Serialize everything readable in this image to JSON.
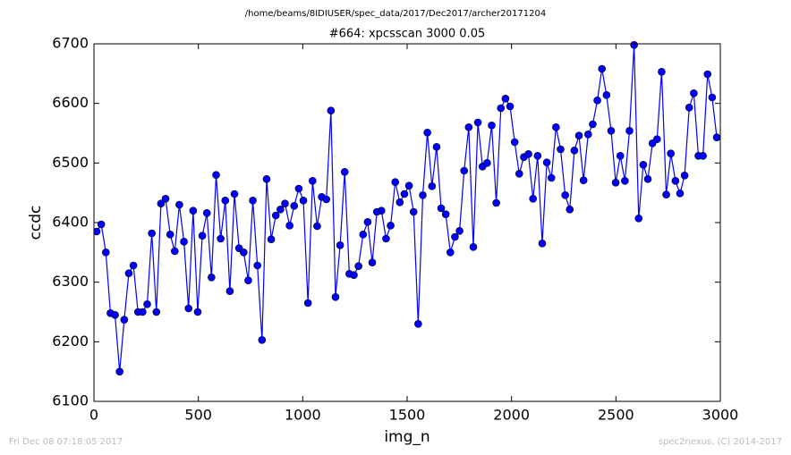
{
  "chart_data": {
    "type": "line",
    "suptitle": "/home/beams/8IDIUSER/spec_data/2017/Dec2017/archer20171204",
    "title": "#664: xpcsscan 3000 0.05",
    "x_label": "img_n",
    "y_label": "ccdc",
    "footer_left": "Fri Dec 08 07:18:05 2017",
    "footer_right": "spec2nexus, (C) 2014-2017",
    "xlim": [
      0,
      3000
    ],
    "xticks": [
      0,
      500,
      1000,
      1500,
      2000,
      2500,
      3000
    ],
    "ylim": [
      6100,
      6700
    ],
    "yticks": [
      6100,
      6200,
      6300,
      6400,
      6500,
      6600,
      6700
    ],
    "color": "#0000ff",
    "x": [
      13,
      35,
      57,
      79,
      101,
      123,
      145,
      167,
      189,
      211,
      233,
      255,
      277,
      299,
      321,
      343,
      365,
      387,
      409,
      431,
      453,
      475,
      497,
      519,
      541,
      563,
      585,
      607,
      629,
      651,
      673,
      695,
      717,
      739,
      761,
      783,
      805,
      827,
      849,
      871,
      893,
      915,
      937,
      959,
      981,
      1003,
      1025,
      1047,
      1069,
      1091,
      1113,
      1135,
      1157,
      1179,
      1201,
      1223,
      1245,
      1267,
      1289,
      1311,
      1333,
      1355,
      1377,
      1399,
      1421,
      1443,
      1465,
      1487,
      1509,
      1531,
      1553,
      1575,
      1597,
      1619,
      1641,
      1663,
      1685,
      1707,
      1729,
      1751,
      1773,
      1795,
      1817,
      1839,
      1861,
      1883,
      1905,
      1927,
      1949,
      1971,
      1993,
      2015,
      2037,
      2059,
      2081,
      2103,
      2125,
      2147,
      2169,
      2191,
      2213,
      2235,
      2257,
      2279,
      2301,
      2323,
      2345,
      2367,
      2389,
      2411,
      2433,
      2455,
      2477,
      2499,
      2521,
      2543,
      2565,
      2587,
      2609,
      2631,
      2653,
      2675,
      2697,
      2719,
      2741,
      2763,
      2785,
      2807,
      2829,
      2851,
      2873,
      2895,
      2917,
      2939,
      2961,
      2983
    ],
    "values": [
      6385,
      6397,
      6350,
      6248,
      6245,
      6150,
      6237,
      6315,
      6328,
      6250,
      6250,
      6263,
      6382,
      6250,
      6432,
      6440,
      6380,
      6352,
      6430,
      6368,
      6256,
      6420,
      6250,
      6378,
      6416,
      6308,
      6480,
      6373,
      6437,
      6285,
      6448,
      6357,
      6350,
      6303,
      6437,
      6328,
      6203,
      6473,
      6372,
      6412,
      6422,
      6432,
      6395,
      6428,
      6457,
      6437,
      6265,
      6470,
      6394,
      6443,
      6439,
      6588,
      6275,
      6362,
      6485,
      6314,
      6312,
      6327,
      6380,
      6401,
      6333,
      6418,
      6420,
      6373,
      6395,
      6468,
      6434,
      6448,
      6462,
      6418,
      6230,
      6446,
      6551,
      6461,
      6527,
      6424,
      6414,
      6350,
      6376,
      6386,
      6487,
      6560,
      6359,
      6568,
      6494,
      6500,
      6563,
      6433,
      6592,
      6608,
      6595,
      6535,
      6482,
      6510,
      6515,
      6440,
      6512,
      6365,
      6501,
      6475,
      6560,
      6523,
      6446,
      6422,
      6521,
      6546,
      6471,
      6548,
      6565,
      6605,
      6658,
      6614,
      6554,
      6467,
      6512,
      6470,
      6554,
      6698,
      6407,
      6497,
      6473,
      6533,
      6540,
      6653,
      6447,
      6516,
      6470,
      6449,
      6479,
      6593,
      6617,
      6512,
      6512,
      6649,
      6610,
      6543
    ]
  }
}
